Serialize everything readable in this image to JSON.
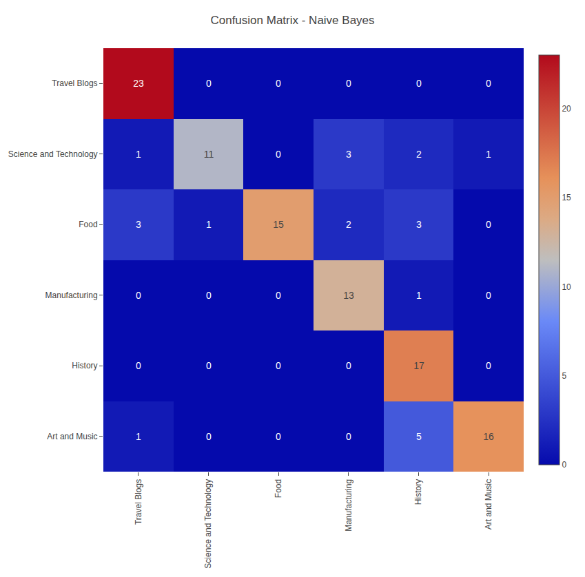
{
  "chart_data": {
    "type": "heatmap",
    "title": "Confusion Matrix - Naive Bayes",
    "categories": [
      "Travel Blogs",
      "Science and Technology",
      "Food",
      "Manufacturing",
      "History",
      "Art and Music"
    ],
    "values": [
      [
        23,
        0,
        0,
        0,
        0,
        0
      ],
      [
        1,
        11,
        0,
        3,
        2,
        1
      ],
      [
        3,
        1,
        15,
        2,
        3,
        0
      ],
      [
        0,
        0,
        0,
        13,
        1,
        0
      ],
      [
        0,
        0,
        0,
        0,
        17,
        0
      ],
      [
        1,
        0,
        0,
        0,
        5,
        16
      ]
    ],
    "colorbar_range": [
      0,
      23
    ],
    "colorbar_ticks": [
      0,
      5,
      10,
      15,
      20
    ],
    "data_labels": true,
    "grid": false
  }
}
